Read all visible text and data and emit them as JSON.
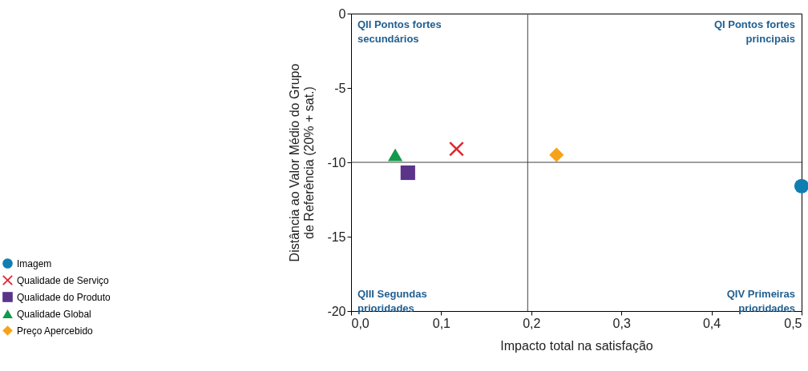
{
  "chart_data": {
    "type": "scatter",
    "xlabel": "Impacto total na satisfação",
    "ylabel": "Distância ao Valor Médio do Grupo\nde Referência (20% + sat.)",
    "xlim": [
      0,
      0.5
    ],
    "xticks": [
      {
        "value": 0,
        "label": "0,0"
      },
      {
        "value": 0.1,
        "label": "0,1"
      },
      {
        "value": 0.2,
        "label": "0,2"
      },
      {
        "value": 0.3,
        "label": "0,3"
      },
      {
        "value": 0.4,
        "label": "0,4"
      },
      {
        "value": 0.5,
        "label": "0,5"
      }
    ],
    "ylim": [
      -20,
      0
    ],
    "yticks": [
      0,
      -5,
      -10,
      -15,
      -20
    ],
    "grid": false,
    "legend": "bottom left",
    "series": [
      {
        "name": "Imagem",
        "color": "#0f7fb1",
        "marker": "circle",
        "x": [
          0.5
        ],
        "values": [
          -11.6
        ]
      },
      {
        "name": "Qualidade de Serviço",
        "color": "#e2262d",
        "marker": "cross",
        "x": [
          0.117
        ],
        "values": [
          -9.1
        ]
      },
      {
        "name": "Qualidade do Produto",
        "color": "#5a3489",
        "marker": "square",
        "x": [
          0.063
        ],
        "values": [
          -10.7
        ]
      },
      {
        "name": "Qualidade Global",
        "color": "#12994b",
        "marker": "triangle",
        "x": [
          0.049
        ],
        "values": [
          -9.5
        ]
      },
      {
        "name": "Preço Apercebido",
        "color": "#f6a31b",
        "marker": "diamond",
        "x": [
          0.228
        ],
        "values": [
          -9.5
        ]
      }
    ],
    "ref_lines": [
      {
        "axis": "x",
        "value": 0.196,
        "color": "#404040"
      },
      {
        "axis": "y",
        "value": -10,
        "color": "#404040"
      }
    ],
    "annotations": [
      "QII Pontos fortes\nsecundários",
      "QI Pontos fortes\nprincipais",
      "QIII Segundas\nprioridades",
      "QIV Primeiras\nprioridades"
    ]
  }
}
